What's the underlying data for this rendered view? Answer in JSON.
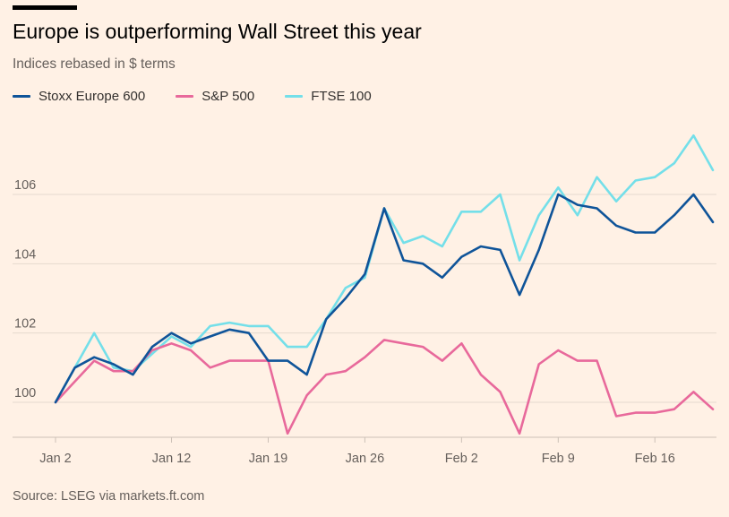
{
  "title": "Europe is outperforming Wall Street this year",
  "subtitle": "Indices rebased in $ terms",
  "source": "Source: LSEG via markets.ft.com",
  "chart_data": {
    "type": "line",
    "ylim": [
      99,
      108
    ],
    "yticks": [
      100,
      102,
      104,
      106
    ],
    "xtick_labels": [
      {
        "label": "Jan 2",
        "index": 0
      },
      {
        "label": "Jan 12",
        "index": 6
      },
      {
        "label": "Jan 19",
        "index": 11
      },
      {
        "label": "Jan 26",
        "index": 16
      },
      {
        "label": "Feb 2",
        "index": 21
      },
      {
        "label": "Feb 9",
        "index": 26
      },
      {
        "label": "Feb 16",
        "index": 31
      }
    ],
    "grid": "horizontal",
    "legend_position": "top-left",
    "series": [
      {
        "name": "Stoxx Europe 600",
        "color": "#0f5499",
        "values": [
          100.0,
          101.0,
          101.3,
          101.1,
          100.8,
          101.6,
          102.0,
          101.7,
          101.9,
          102.1,
          102.0,
          101.2,
          101.2,
          100.8,
          102.4,
          103.0,
          103.7,
          105.6,
          104.1,
          104.0,
          103.6,
          104.2,
          104.5,
          104.4,
          103.1,
          104.4,
          106.0,
          105.7,
          105.6,
          105.1,
          104.9,
          104.9,
          105.4,
          106.0,
          105.2
        ]
      },
      {
        "name": "S&P 500",
        "color": "#e8699b",
        "values": [
          100.0,
          100.6,
          101.2,
          100.9,
          100.9,
          101.5,
          101.7,
          101.5,
          101.0,
          101.2,
          101.2,
          101.2,
          99.1,
          100.2,
          100.8,
          100.9,
          101.3,
          101.8,
          101.7,
          101.6,
          101.2,
          101.7,
          100.8,
          100.3,
          99.1,
          101.1,
          101.5,
          101.2,
          101.2,
          99.6,
          99.7,
          99.7,
          99.8,
          100.3,
          99.8
        ]
      },
      {
        "name": "FTSE 100",
        "color": "#74dfe9",
        "values": [
          100.0,
          101.0,
          102.0,
          101.0,
          100.9,
          101.4,
          101.9,
          101.6,
          102.2,
          102.3,
          102.2,
          102.2,
          101.6,
          101.6,
          102.4,
          103.3,
          103.6,
          105.6,
          104.6,
          104.8,
          104.5,
          105.5,
          105.5,
          106.0,
          104.1,
          105.4,
          106.2,
          105.4,
          106.5,
          105.8,
          106.4,
          106.5,
          106.9,
          107.7,
          106.7
        ]
      }
    ]
  }
}
